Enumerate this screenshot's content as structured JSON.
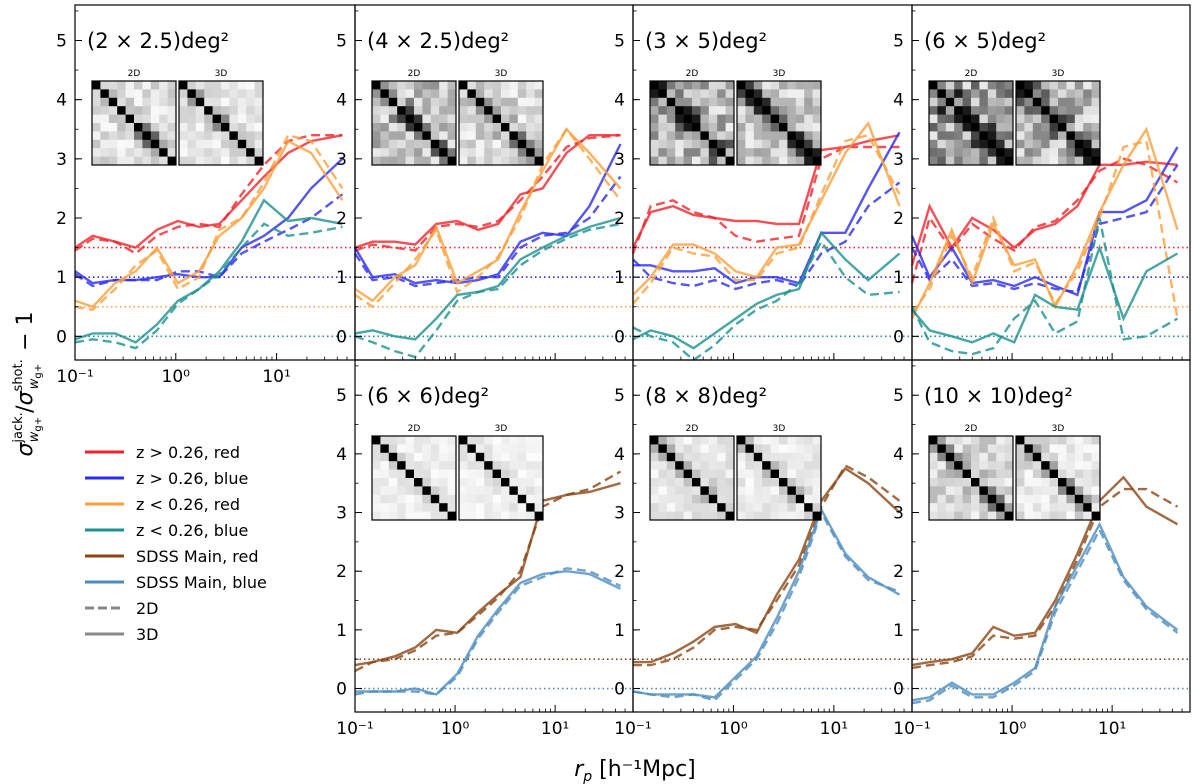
{
  "figure": {
    "ylabel": "σ^jack._wg+ / σ^shot._wg+ − 1",
    "ylabel_parts": {
      "sigma": "σ",
      "sup_jack": "jack.",
      "sup_shot": "shot.",
      "sub": "w",
      "subsub": "g+",
      "slash": "/",
      "minus": " − 1"
    },
    "xlabel_parts": {
      "r": "r",
      "sub": "p",
      "unit": "[h⁻¹Mpc]"
    },
    "legend": [
      {
        "label": "z > 0.26, red",
        "color": "#f2232b",
        "style": "solid"
      },
      {
        "label": "z > 0.26, blue",
        "color": "#2b2bf0",
        "style": "solid"
      },
      {
        "label": "z < 0.26, red",
        "color": "#fb9f3a",
        "style": "solid"
      },
      {
        "label": "z < 0.26, blue",
        "color": "#1c9090",
        "style": "solid"
      },
      {
        "label": "SDSS Main, red",
        "color": "#8b4513",
        "style": "solid"
      },
      {
        "label": "SDSS Main, blue",
        "color": "#4c8cbf",
        "style": "solid"
      },
      {
        "label": "2D",
        "color": "#888888",
        "style": "dashed"
      },
      {
        "label": "3D",
        "color": "#888888",
        "style": "solid"
      }
    ],
    "inset_labels": [
      "2D",
      "3D"
    ]
  },
  "chart_data": [
    {
      "type": "line",
      "title": "(2 × 2.5)deg²",
      "xscale": "log",
      "xlim": [
        0.1,
        60
      ],
      "ylim": [
        -0.4,
        5.6
      ],
      "yticks": [
        "0",
        "1",
        "2",
        "3",
        "4",
        "5"
      ],
      "xticks": [
        "10⁻¹",
        "10⁰",
        "10¹"
      ],
      "hlines": [
        {
          "y": 1.5,
          "color": "#f2232b"
        },
        {
          "y": 1.0,
          "color": "#2b2bf0"
        },
        {
          "y": 0.5,
          "color": "#fb9f3a"
        },
        {
          "y": 0.0,
          "color": "#1c9090"
        }
      ],
      "series": [
        {
          "name": "z > 0.26, red",
          "color": "#f2232b",
          "solid": [
            1.5,
            1.7,
            1.6,
            1.5,
            1.8,
            1.95,
            1.85,
            1.9,
            2.3,
            2.7,
            3.1,
            3.3,
            3.4
          ],
          "dashed": [
            1.45,
            1.65,
            1.6,
            1.4,
            1.7,
            1.85,
            1.9,
            1.85,
            2.4,
            2.9,
            3.3,
            3.4,
            3.4
          ]
        },
        {
          "name": "z > 0.26, blue",
          "color": "#2b2bf0",
          "solid": [
            1.1,
            0.9,
            0.95,
            0.95,
            1.0,
            1.05,
            1.0,
            1.0,
            1.5,
            1.7,
            2.0,
            2.5,
            3.0
          ],
          "dashed": [
            1.05,
            0.85,
            0.95,
            0.95,
            0.95,
            1.1,
            1.1,
            1.0,
            1.4,
            1.6,
            1.8,
            2.0,
            2.4
          ]
        },
        {
          "name": "z < 0.26, red",
          "color": "#fb9f3a",
          "solid": [
            0.6,
            0.5,
            0.9,
            1.1,
            1.5,
            0.9,
            1.1,
            1.7,
            2.0,
            2.5,
            3.3,
            3.1,
            2.3
          ],
          "dashed": [
            0.5,
            0.45,
            0.8,
            1.2,
            1.45,
            0.8,
            1.0,
            1.8,
            2.0,
            2.6,
            3.4,
            3.3,
            2.5
          ]
        },
        {
          "name": "z < 0.26, blue",
          "color": "#1c9090",
          "solid": [
            -0.05,
            0.05,
            0.05,
            -0.1,
            0.2,
            0.6,
            0.8,
            1.1,
            1.6,
            2.3,
            1.95,
            2.0,
            1.9
          ],
          "dashed": [
            -0.1,
            -0.05,
            -0.1,
            -0.2,
            0.1,
            0.55,
            0.8,
            1.05,
            1.5,
            1.9,
            1.7,
            1.75,
            1.85
          ]
        }
      ],
      "matrix_2d": [
        0.55,
        0.35,
        0.1
      ],
      "matrix_3d": [
        0.4,
        0.25,
        0.08
      ]
    },
    {
      "type": "line",
      "title": "(4 × 2.5)deg²",
      "xscale": "log",
      "xlim": [
        0.1,
        60
      ],
      "ylim": [
        -0.4,
        5.6
      ],
      "yticks": [
        "0",
        "1",
        "2",
        "3",
        "4",
        "5"
      ],
      "xticks": [],
      "hlines": [
        {
          "y": 1.5,
          "color": "#f2232b"
        },
        {
          "y": 1.0,
          "color": "#2b2bf0"
        },
        {
          "y": 0.5,
          "color": "#fb9f3a"
        },
        {
          "y": 0.0,
          "color": "#1c9090"
        }
      ],
      "series": [
        {
          "name": "z > 0.26, red",
          "color": "#f2232b",
          "solid": [
            1.5,
            1.6,
            1.6,
            1.55,
            1.9,
            1.95,
            1.8,
            1.9,
            2.4,
            2.5,
            3.1,
            3.4,
            3.4
          ],
          "dashed": [
            1.45,
            1.55,
            1.5,
            1.45,
            1.85,
            1.9,
            1.85,
            1.95,
            2.3,
            2.7,
            3.2,
            3.35,
            3.4
          ]
        },
        {
          "name": "z > 0.26, blue",
          "color": "#2b2bf0",
          "solid": [
            1.5,
            1.0,
            1.05,
            0.9,
            0.95,
            0.9,
            0.95,
            1.05,
            1.6,
            1.75,
            1.7,
            2.2,
            3.25
          ],
          "dashed": [
            1.4,
            0.95,
            1.0,
            0.85,
            0.9,
            0.95,
            1.0,
            1.0,
            1.5,
            1.7,
            1.75,
            2.0,
            2.7
          ]
        },
        {
          "name": "z < 0.26, red",
          "color": "#fb9f3a",
          "solid": [
            0.8,
            0.6,
            1.0,
            1.2,
            1.85,
            0.9,
            1.1,
            1.3,
            2.1,
            2.8,
            3.5,
            3.1,
            2.5
          ],
          "dashed": [
            0.7,
            0.5,
            0.9,
            1.3,
            1.8,
            0.75,
            1.0,
            1.35,
            2.0,
            2.9,
            3.5,
            3.0,
            2.3
          ]
        },
        {
          "name": "z < 0.26, blue",
          "color": "#1c9090",
          "solid": [
            0.05,
            0.1,
            0.0,
            -0.05,
            0.3,
            0.7,
            0.75,
            0.85,
            1.3,
            1.5,
            1.7,
            1.85,
            2.0
          ],
          "dashed": [
            0.0,
            -0.1,
            -0.25,
            -0.35,
            0.1,
            0.6,
            0.75,
            0.8,
            1.2,
            1.45,
            1.65,
            1.8,
            1.9
          ]
        }
      ],
      "matrix_2d": [
        0.75,
        0.5,
        0.25
      ],
      "matrix_3d": [
        0.6,
        0.35,
        0.15
      ]
    },
    {
      "type": "line",
      "title": "(3 × 5)deg²",
      "xscale": "log",
      "xlim": [
        0.1,
        60
      ],
      "ylim": [
        -0.4,
        5.6
      ],
      "yticks": [
        "0",
        "1",
        "2",
        "3",
        "4",
        "5"
      ],
      "xticks": [],
      "hlines": [
        {
          "y": 1.5,
          "color": "#f2232b"
        },
        {
          "y": 1.0,
          "color": "#2b2bf0"
        },
        {
          "y": 0.5,
          "color": "#fb9f3a"
        },
        {
          "y": 0.0,
          "color": "#1c9090"
        }
      ],
      "series": [
        {
          "name": "z > 0.26, red",
          "color": "#f2232b",
          "solid": [
            1.5,
            2.1,
            2.2,
            2.05,
            2.0,
            1.95,
            1.95,
            1.9,
            1.9,
            3.15,
            3.2,
            3.3,
            3.4
          ],
          "dashed": [
            1.4,
            2.2,
            2.3,
            2.1,
            2.0,
            1.7,
            1.6,
            1.65,
            1.7,
            3.0,
            3.2,
            3.2,
            3.2
          ]
        },
        {
          "name": "z > 0.26, blue",
          "color": "#2b2bf0",
          "solid": [
            1.2,
            1.2,
            1.1,
            1.1,
            1.15,
            0.9,
            1.0,
            1.0,
            0.9,
            1.75,
            1.75,
            2.5,
            3.45
          ],
          "dashed": [
            1.3,
            1.0,
            0.9,
            0.85,
            0.95,
            0.8,
            0.9,
            0.95,
            0.85,
            1.4,
            1.6,
            2.2,
            2.6
          ]
        },
        {
          "name": "z < 0.26, red",
          "color": "#fb9f3a",
          "solid": [
            0.7,
            1.0,
            1.55,
            1.55,
            1.4,
            1.1,
            1.0,
            1.5,
            1.55,
            2.3,
            3.1,
            3.6,
            2.2
          ],
          "dashed": [
            0.55,
            0.9,
            1.5,
            1.4,
            1.35,
            0.95,
            0.95,
            1.4,
            1.5,
            2.4,
            3.3,
            3.4,
            2.4
          ]
        },
        {
          "name": "z < 0.26, blue",
          "color": "#1c9090",
          "solid": [
            -0.05,
            0.1,
            0.0,
            -0.2,
            0.05,
            0.3,
            0.55,
            0.7,
            0.8,
            1.75,
            1.3,
            0.95,
            1.4
          ],
          "dashed": [
            0.15,
            0.0,
            -0.1,
            -0.4,
            -0.15,
            0.2,
            0.45,
            0.6,
            0.9,
            1.6,
            1.0,
            0.7,
            0.75
          ]
        }
      ],
      "matrix_2d": [
        0.8,
        0.55,
        0.3
      ],
      "matrix_3d": [
        0.7,
        0.45,
        0.2
      ]
    },
    {
      "type": "line",
      "title": "(6 × 5)deg²",
      "xscale": "log",
      "xlim": [
        0.1,
        60
      ],
      "ylim": [
        -0.4,
        5.6
      ],
      "yticks": [
        "0",
        "1",
        "2",
        "3",
        "4",
        "5"
      ],
      "xticks": [],
      "hlines": [
        {
          "y": 1.5,
          "color": "#f2232b"
        },
        {
          "y": 1.0,
          "color": "#2b2bf0"
        },
        {
          "y": 0.5,
          "color": "#fb9f3a"
        },
        {
          "y": 0.0,
          "color": "#1c9090"
        }
      ],
      "series": [
        {
          "name": "z > 0.26, red",
          "color": "#f2232b",
          "solid": [
            1.2,
            2.2,
            1.5,
            2.0,
            1.8,
            1.5,
            1.8,
            1.9,
            2.2,
            2.9,
            2.9,
            2.95,
            2.9
          ],
          "dashed": [
            0.9,
            2.0,
            1.45,
            1.9,
            1.65,
            1.45,
            1.85,
            1.95,
            2.3,
            2.8,
            3.0,
            2.9,
            2.6
          ]
        },
        {
          "name": "z > 0.26, blue",
          "color": "#2b2bf0",
          "solid": [
            1.7,
            1.0,
            1.5,
            0.9,
            0.95,
            0.85,
            1.0,
            0.85,
            0.7,
            2.1,
            2.1,
            2.3,
            3.2
          ],
          "dashed": [
            1.5,
            0.95,
            1.3,
            0.85,
            0.9,
            0.8,
            0.9,
            0.8,
            0.75,
            1.9,
            2.0,
            2.1,
            2.9
          ]
        },
        {
          "name": "z < 0.26, red",
          "color": "#fb9f3a",
          "solid": [
            0.3,
            0.9,
            1.8,
            0.9,
            1.9,
            1.2,
            1.3,
            0.5,
            1.2,
            2.1,
            2.9,
            3.5,
            1.8
          ],
          "dashed": [
            0.4,
            0.8,
            1.7,
            1.0,
            2.0,
            1.1,
            1.25,
            0.55,
            1.1,
            2.0,
            3.2,
            3.3,
            0.3
          ]
        },
        {
          "name": "z < 0.26, blue",
          "color": "#1c9090",
          "solid": [
            0.45,
            0.1,
            0.0,
            -0.1,
            0.05,
            -0.1,
            0.7,
            0.5,
            0.45,
            1.5,
            0.3,
            1.1,
            1.4
          ],
          "dashed": [
            0.5,
            -0.1,
            -0.25,
            -0.3,
            -0.2,
            0.3,
            0.6,
            0.05,
            0.25,
            2.0,
            -0.05,
            0.0,
            0.3
          ]
        }
      ],
      "matrix_2d": [
        0.9,
        0.7,
        0.45
      ],
      "matrix_3d": [
        0.8,
        0.55,
        0.3
      ]
    },
    {
      "type": "line",
      "title": "(6 × 6)deg²",
      "xscale": "log",
      "xlim": [
        0.1,
        60
      ],
      "ylim": [
        -0.4,
        5.6
      ],
      "yticks": [
        "0",
        "1",
        "2",
        "3",
        "4",
        "5"
      ],
      "xticks": [
        "10⁻¹",
        "10⁰",
        "10¹"
      ],
      "hlines": [
        {
          "y": 0.5,
          "color": "#8b4513"
        },
        {
          "y": 0.0,
          "color": "#4c8cbf"
        }
      ],
      "series": [
        {
          "name": "SDSS Main, red",
          "color": "#8b4513",
          "solid": [
            0.4,
            0.45,
            0.55,
            0.7,
            1.0,
            0.95,
            1.3,
            1.6,
            1.9,
            3.2,
            3.3,
            3.35,
            3.5
          ],
          "dashed": [
            0.3,
            0.45,
            0.5,
            0.65,
            0.9,
            0.95,
            1.25,
            1.55,
            2.0,
            3.1,
            3.3,
            3.4,
            3.7
          ]
        },
        {
          "name": "SDSS Main, blue",
          "color": "#4c8cbf",
          "solid": [
            -0.05,
            -0.05,
            -0.05,
            0.0,
            -0.1,
            0.25,
            0.9,
            1.35,
            1.8,
            1.95,
            2.0,
            1.95,
            1.7
          ],
          "dashed": [
            -0.1,
            -0.05,
            -0.05,
            -0.05,
            -0.1,
            0.2,
            0.85,
            1.3,
            1.75,
            1.9,
            2.05,
            2.0,
            1.75
          ]
        }
      ],
      "matrix_2d": [
        0.25,
        0.12,
        0.05
      ],
      "matrix_3d": [
        0.2,
        0.1,
        0.05
      ]
    },
    {
      "type": "line",
      "title": "(8 × 8)deg²",
      "xscale": "log",
      "xlim": [
        0.1,
        60
      ],
      "ylim": [
        -0.4,
        5.6
      ],
      "yticks": [
        "0",
        "1",
        "2",
        "3",
        "4",
        "5"
      ],
      "xticks": [
        "10⁻¹",
        "10⁰",
        "10¹"
      ],
      "hlines": [
        {
          "y": 0.5,
          "color": "#8b4513"
        },
        {
          "y": 0.0,
          "color": "#4c8cbf"
        }
      ],
      "series": [
        {
          "name": "SDSS Main, red",
          "color": "#8b4513",
          "solid": [
            0.45,
            0.45,
            0.6,
            0.8,
            1.05,
            1.1,
            0.95,
            1.6,
            2.2,
            3.2,
            3.75,
            3.5,
            3.0
          ],
          "dashed": [
            0.4,
            0.4,
            0.5,
            0.7,
            1.0,
            1.05,
            1.0,
            1.5,
            2.1,
            3.1,
            3.8,
            3.6,
            3.2
          ]
        },
        {
          "name": "SDSS Main, blue",
          "color": "#4c8cbf",
          "solid": [
            -0.05,
            -0.1,
            -0.1,
            -0.1,
            -0.15,
            0.2,
            0.55,
            1.2,
            2.0,
            3.05,
            2.3,
            1.9,
            1.6
          ],
          "dashed": [
            -0.05,
            -0.1,
            -0.15,
            -0.1,
            -0.2,
            0.15,
            0.5,
            1.1,
            1.9,
            3.0,
            2.25,
            1.85,
            1.65
          ]
        }
      ],
      "matrix_2d": [
        0.35,
        0.2,
        0.08
      ],
      "matrix_3d": [
        0.3,
        0.15,
        0.06
      ]
    },
    {
      "type": "line",
      "title": "(10 × 10)deg²",
      "xscale": "log",
      "xlim": [
        0.1,
        60
      ],
      "ylim": [
        -0.4,
        5.6
      ],
      "yticks": [
        "0",
        "1",
        "2",
        "3",
        "4",
        "5"
      ],
      "xticks": [
        "10⁻¹",
        "10⁰",
        "10¹"
      ],
      "hlines": [
        {
          "y": 0.5,
          "color": "#8b4513"
        },
        {
          "y": 0.0,
          "color": "#4c8cbf"
        }
      ],
      "series": [
        {
          "name": "SDSS Main, red",
          "color": "#8b4513",
          "solid": [
            0.4,
            0.45,
            0.5,
            0.6,
            1.05,
            0.9,
            0.95,
            1.5,
            2.3,
            3.2,
            3.6,
            3.1,
            2.8
          ],
          "dashed": [
            0.35,
            0.4,
            0.45,
            0.55,
            0.9,
            0.85,
            0.9,
            1.4,
            2.2,
            3.1,
            3.4,
            3.4,
            3.1
          ]
        },
        {
          "name": "SDSS Main, blue",
          "color": "#4c8cbf",
          "solid": [
            -0.2,
            -0.15,
            0.1,
            -0.1,
            -0.1,
            0.1,
            0.35,
            1.4,
            2.1,
            2.8,
            1.9,
            1.4,
            1.0
          ],
          "dashed": [
            -0.25,
            -0.2,
            0.05,
            -0.15,
            -0.15,
            0.05,
            0.3,
            1.3,
            2.0,
            2.7,
            1.85,
            1.35,
            0.95
          ]
        }
      ],
      "matrix_2d": [
        0.55,
        0.35,
        0.15
      ],
      "matrix_3d": [
        0.45,
        0.25,
        0.1
      ]
    }
  ]
}
